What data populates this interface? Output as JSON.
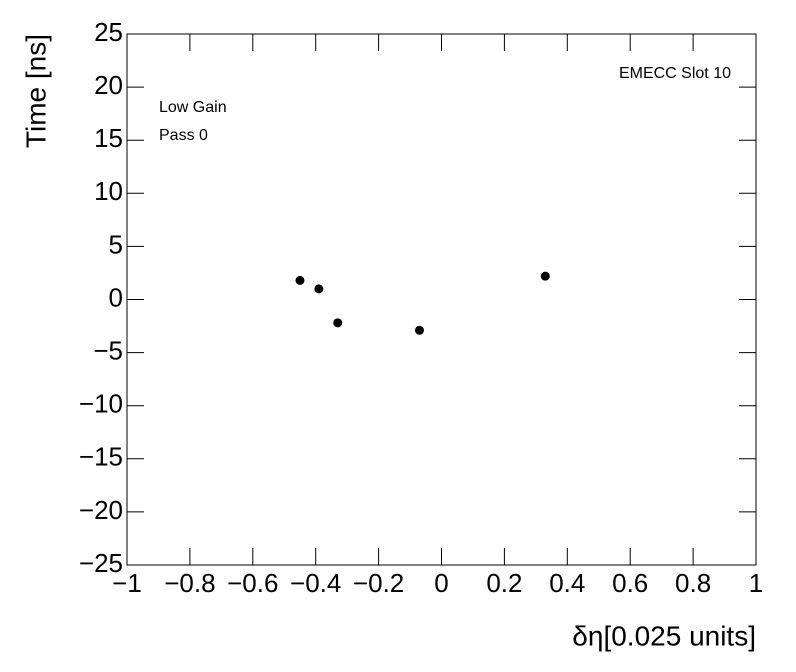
{
  "chart_data": {
    "type": "scatter",
    "x_label": "δη[0.025 units]",
    "y_label": "Time [ns]",
    "annotations": [
      "EMECC Slot 10",
      "Low Gain",
      "Pass 0"
    ],
    "x": [
      -0.45,
      -0.39,
      -0.33,
      -0.07,
      0.33
    ],
    "values": [
      1.8,
      1.0,
      -2.2,
      -2.9,
      2.2
    ],
    "color": "#000000",
    "xlim": [
      -1,
      1
    ],
    "xticks": [
      {
        "value": -1,
        "label": "−1"
      },
      {
        "value": -0.8,
        "label": "−0.8"
      },
      {
        "value": -0.6,
        "label": "−0.6"
      },
      {
        "value": -0.4,
        "label": "−0.4"
      },
      {
        "value": -0.2,
        "label": "−0.2"
      },
      0,
      0.2,
      0.4,
      0.6,
      0.8,
      1
    ],
    "ylim": [
      -25,
      25
    ],
    "yticks": [
      {
        "value": -25,
        "label": "−25"
      },
      {
        "value": -20,
        "label": "−20"
      },
      {
        "value": -15,
        "label": "−15"
      },
      {
        "value": -10,
        "label": "−10"
      },
      {
        "value": -5,
        "label": "−5"
      },
      0,
      5,
      10,
      15,
      20,
      25
    ]
  }
}
